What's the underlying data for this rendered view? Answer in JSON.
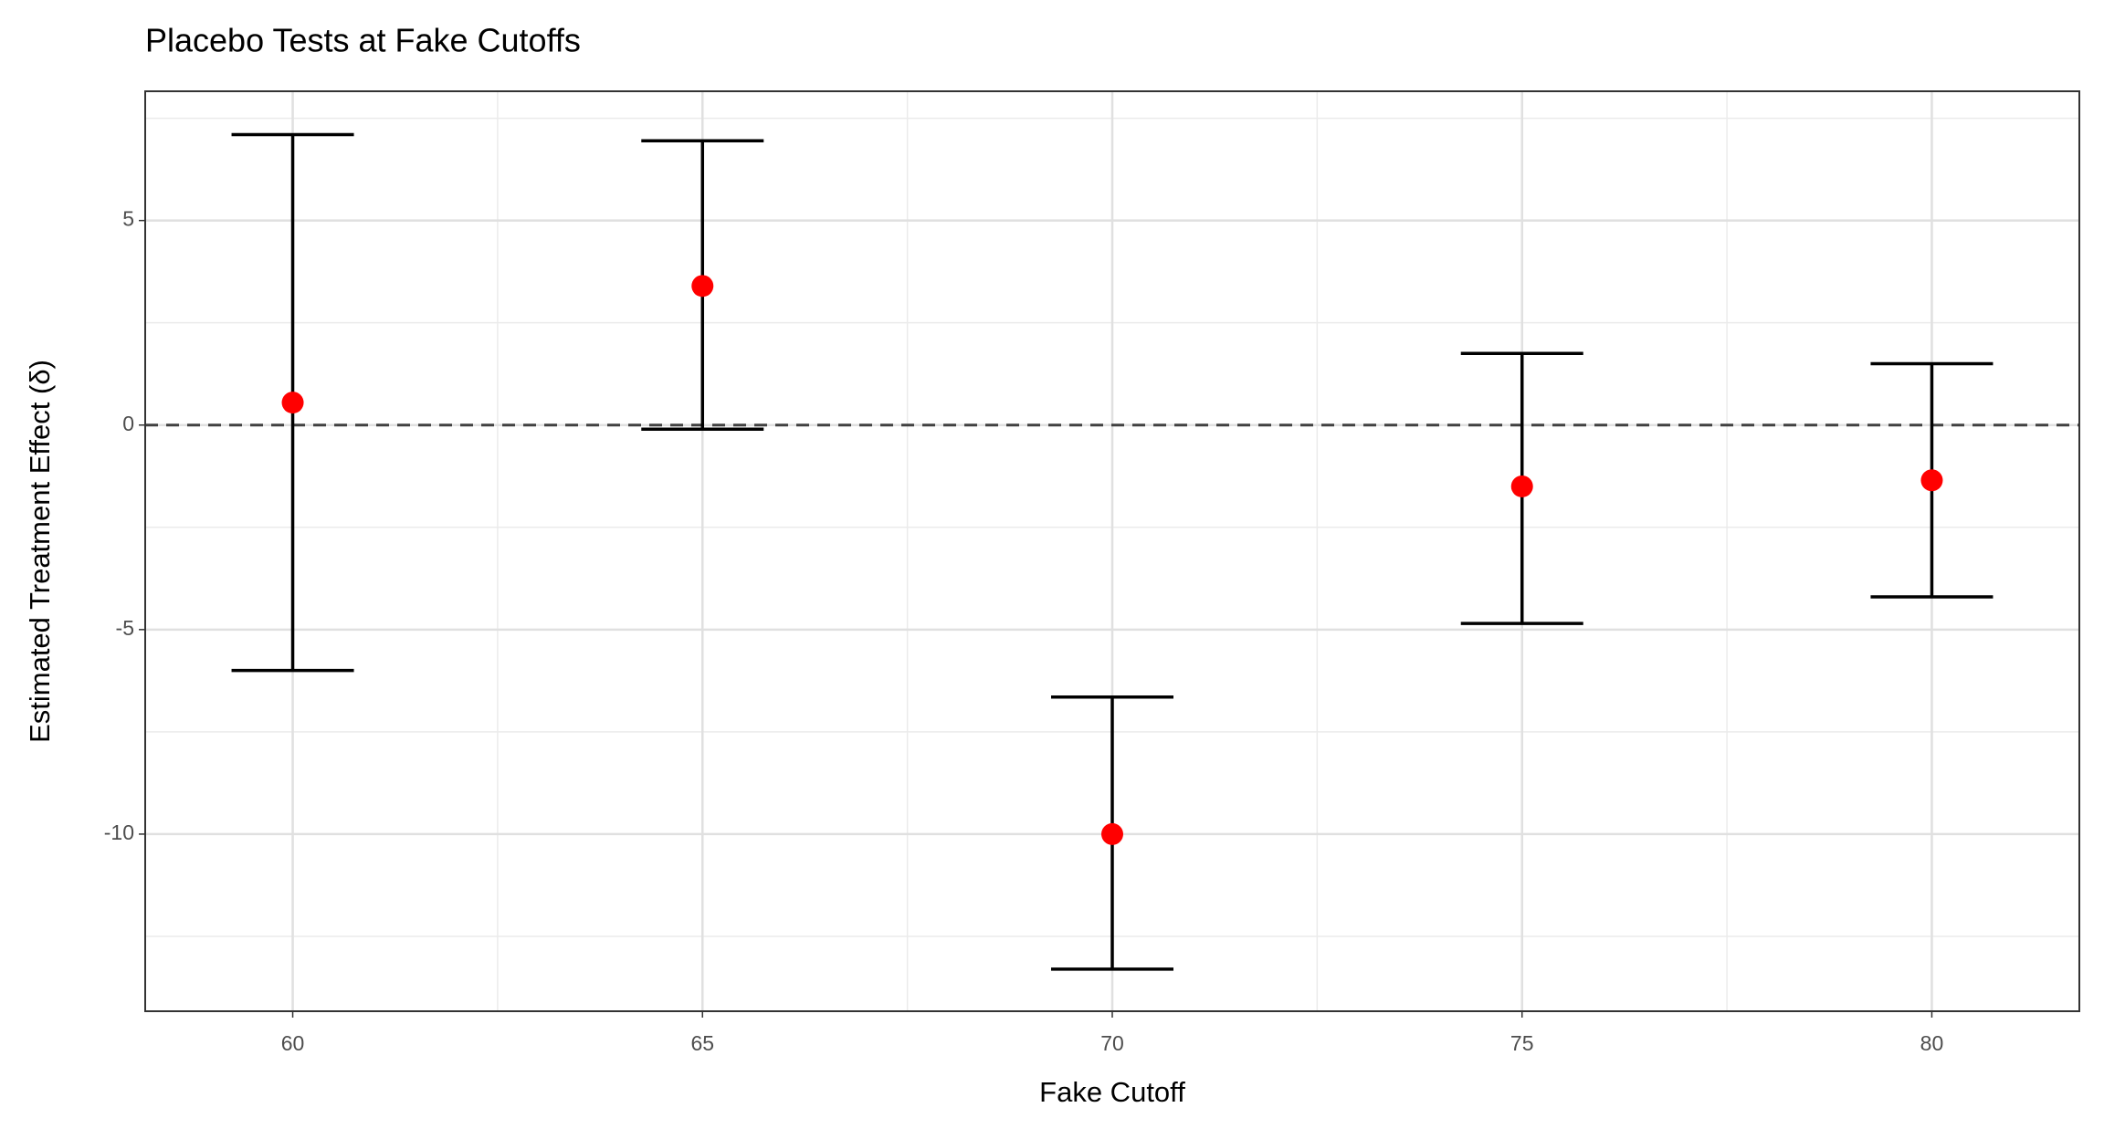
{
  "chart_data": {
    "type": "errorbar",
    "title": "Placebo Tests at Fake Cutoffs",
    "x_label": "Fake Cutoff",
    "y_label": "Estimated Treatment Effect (δ)",
    "x": [
      60,
      65,
      70,
      75,
      80
    ],
    "series": [
      {
        "color": "#ff0000",
        "error_color": "#000000",
        "values": [
          0.55,
          3.4,
          -10.0,
          -1.5,
          -1.35
        ],
        "lower": [
          -6.0,
          -0.1,
          -13.3,
          -4.85,
          -4.2
        ],
        "upper": [
          7.1,
          6.95,
          -6.65,
          1.75,
          1.5
        ]
      }
    ],
    "hline": 0,
    "xlim": [
      58.2,
      81.8
    ],
    "ylim": [
      -14.33,
      8.16
    ],
    "xticks": [
      60,
      65,
      70,
      75,
      80
    ],
    "yticks": [
      -10,
      -5,
      0,
      5
    ],
    "grid": true
  }
}
